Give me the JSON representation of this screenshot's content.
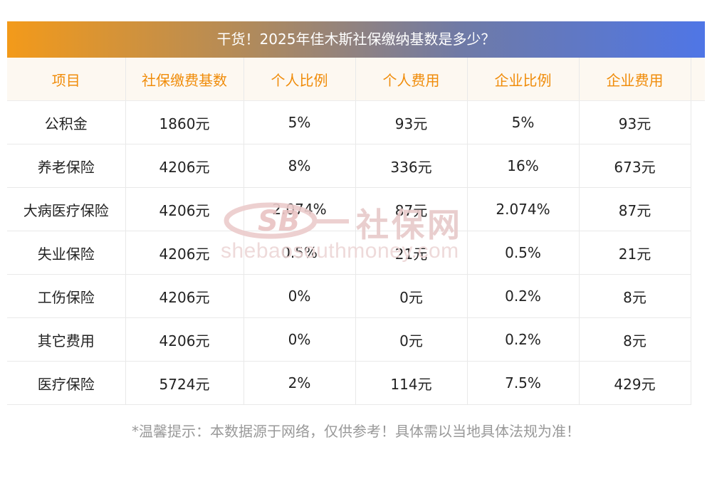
{
  "banner": {
    "title": "干货！2025年佳木斯社保缴纳基数是多少？"
  },
  "table": {
    "headers": [
      "项目",
      "社保缴费基数",
      "个人比例",
      "个人费用",
      "企业比例",
      "企业费用"
    ],
    "rows": [
      [
        "公积金",
        "1860元",
        "5%",
        "93元",
        "5%",
        "93元"
      ],
      [
        "养老保险",
        "4206元",
        "8%",
        "336元",
        "16%",
        "673元"
      ],
      [
        "大病医疗保险",
        "4206元",
        "2.074%",
        "87元",
        "2.074%",
        "87元"
      ],
      [
        "失业保险",
        "4206元",
        "0.5%",
        "21元",
        "0.5%",
        "21元"
      ],
      [
        "工伤保险",
        "4206元",
        "0%",
        "0元",
        "0.2%",
        "8元"
      ],
      [
        "其它费用",
        "4206元",
        "0%",
        "0元",
        "0.2%",
        "8元"
      ],
      [
        "医疗保险",
        "5724元",
        "2%",
        "114元",
        "7.5%",
        "429元"
      ]
    ]
  },
  "watermark": {
    "logo_text": "SB",
    "brand": "社保网",
    "url": "shebaosouthmoney.com"
  },
  "footer": {
    "note": "*温馨提示：本数据源于网络，仅供参考！具体需以当地具体法规为准！"
  }
}
